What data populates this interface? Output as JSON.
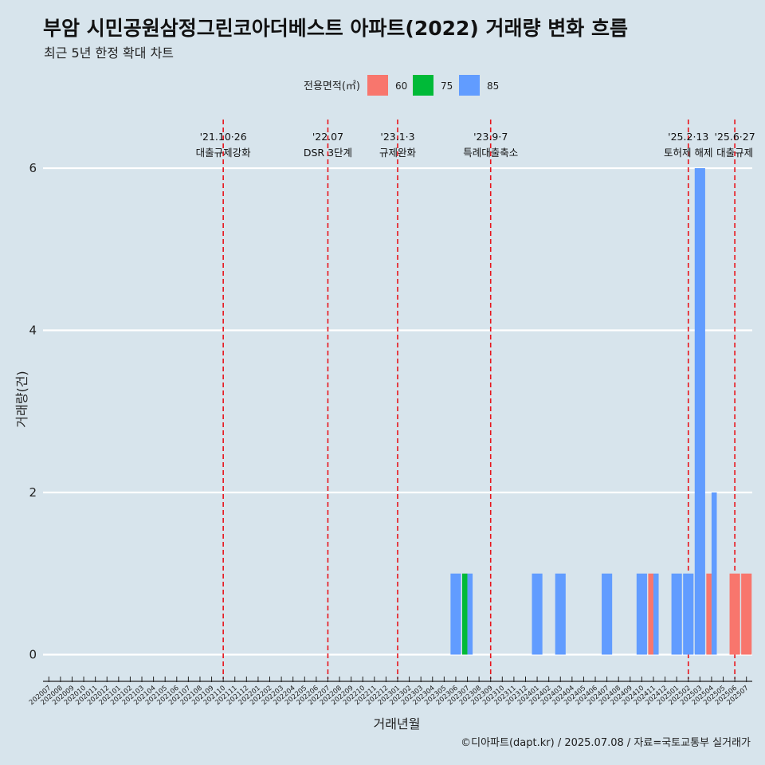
{
  "title": "부암 시민공원삼정그린코아더베스트 아파트(2022) 거래량 변화 흐름",
  "subtitle": "최근 5년 한정 확대 차트",
  "caption": "©디아파트(dapt.kr) / 2025.07.08 / 자료=국토교통부 실거래가",
  "chart_data": {
    "type": "bar",
    "xlabel": "거래년월",
    "ylabel": "거래량(건)",
    "ylim": [
      -0.3,
      6.6
    ],
    "yticks": [
      0,
      2,
      4,
      6
    ],
    "legend": {
      "title": "전용면적(㎡)",
      "placement": "top",
      "entries": [
        {
          "label": "60",
          "color": "#f8766d"
        },
        {
          "label": "75",
          "color": "#00ba38"
        },
        {
          "label": "85",
          "color": "#619cff"
        }
      ]
    },
    "categories": [
      "202007",
      "202008",
      "202009",
      "202010",
      "202011",
      "202012",
      "202101",
      "202102",
      "202103",
      "202104",
      "202105",
      "202106",
      "202107",
      "202108",
      "202109",
      "202110",
      "202111",
      "202112",
      "202201",
      "202202",
      "202203",
      "202204",
      "202205",
      "202206",
      "202207",
      "202208",
      "202209",
      "202210",
      "202211",
      "202212",
      "202301",
      "202302",
      "202303",
      "202304",
      "202305",
      "202306",
      "202307",
      "202308",
      "202309",
      "202310",
      "202311",
      "202312",
      "202401",
      "202402",
      "202403",
      "202404",
      "202405",
      "202406",
      "202407",
      "202408",
      "202409",
      "202410",
      "202411",
      "202412",
      "202501",
      "202502",
      "202503",
      "202504",
      "202505",
      "202506",
      "202507"
    ],
    "bars": [
      {
        "month": "202306",
        "area": "85",
        "value": 1
      },
      {
        "month": "202307",
        "area": "75",
        "value": 1
      },
      {
        "month": "202307",
        "area": "85",
        "value": 1
      },
      {
        "month": "202401",
        "area": "85",
        "value": 1
      },
      {
        "month": "202403",
        "area": "85",
        "value": 1
      },
      {
        "month": "202407",
        "area": "85",
        "value": 1
      },
      {
        "month": "202410",
        "area": "85",
        "value": 1
      },
      {
        "month": "202411",
        "area": "60",
        "value": 1
      },
      {
        "month": "202411",
        "area": "85",
        "value": 1
      },
      {
        "month": "202501",
        "area": "85",
        "value": 1
      },
      {
        "month": "202502",
        "area": "85",
        "value": 1
      },
      {
        "month": "202503",
        "area": "85",
        "value": 6
      },
      {
        "month": "202504",
        "area": "60",
        "value": 1
      },
      {
        "month": "202504",
        "area": "85",
        "value": 2
      },
      {
        "month": "202506",
        "area": "60",
        "value": 1
      },
      {
        "month": "202507",
        "area": "60",
        "value": 1
      }
    ],
    "events": [
      {
        "month": "202110",
        "date": "'21.10·26",
        "label": "대출규제강화"
      },
      {
        "month": "202207",
        "date": "'22.07",
        "label": "DSR 3단계"
      },
      {
        "month": "202301",
        "date": "'23.1·3",
        "label": "규제완화"
      },
      {
        "month": "202309",
        "date": "'23.9·7",
        "label": "특례대출축소"
      },
      {
        "month": "202502",
        "date": "'25.2·13",
        "label": "토허제 해제"
      },
      {
        "month": "202506",
        "date": "'25.6·27",
        "label": "대출규제"
      }
    ]
  }
}
